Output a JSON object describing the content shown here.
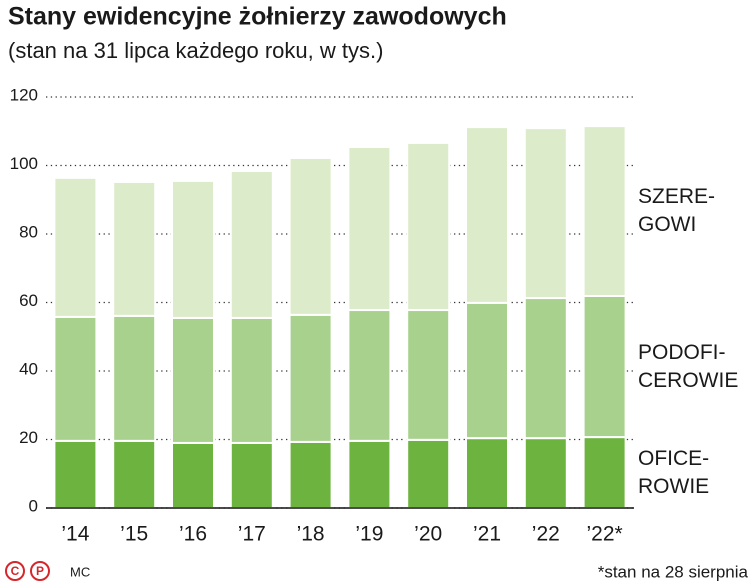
{
  "chart_data": {
    "type": "stacked-bar",
    "title": "Stany ewidencyjne żołnierzy zawodowych",
    "subtitle": "(stan na 31 lipca każdego roku, w tys.)",
    "categories": [
      "’14",
      "’15",
      "’16",
      "’17",
      "’18",
      "’19",
      "’20",
      "’21",
      "’22",
      "’22*"
    ],
    "series": [
      {
        "name": "OFICE-\nROWIE",
        "color": "#6db33f",
        "values": [
          19.6,
          19.6,
          19.0,
          19.0,
          19.3,
          19.6,
          19.9,
          20.4,
          20.4,
          20.7
        ]
      },
      {
        "name": "PODOFI-\nCEROWIE",
        "color": "#a9d18e",
        "values": [
          36.2,
          36.5,
          36.5,
          36.5,
          37.1,
          38.2,
          37.9,
          39.5,
          40.9,
          41.2
        ]
      },
      {
        "name": "SZERE-\nGOWI",
        "color": "#dcebc9",
        "values": [
          40.6,
          39.1,
          40.0,
          42.9,
          45.8,
          47.6,
          48.8,
          51.3,
          49.6,
          49.6
        ]
      }
    ],
    "ylim": [
      0,
      120
    ],
    "yticks": [
      0,
      20,
      40,
      60,
      80,
      100,
      120
    ],
    "grid": true,
    "logo": [
      "C",
      "P"
    ],
    "credit": "MC",
    "note": "*stan na 28 sierpnia"
  }
}
